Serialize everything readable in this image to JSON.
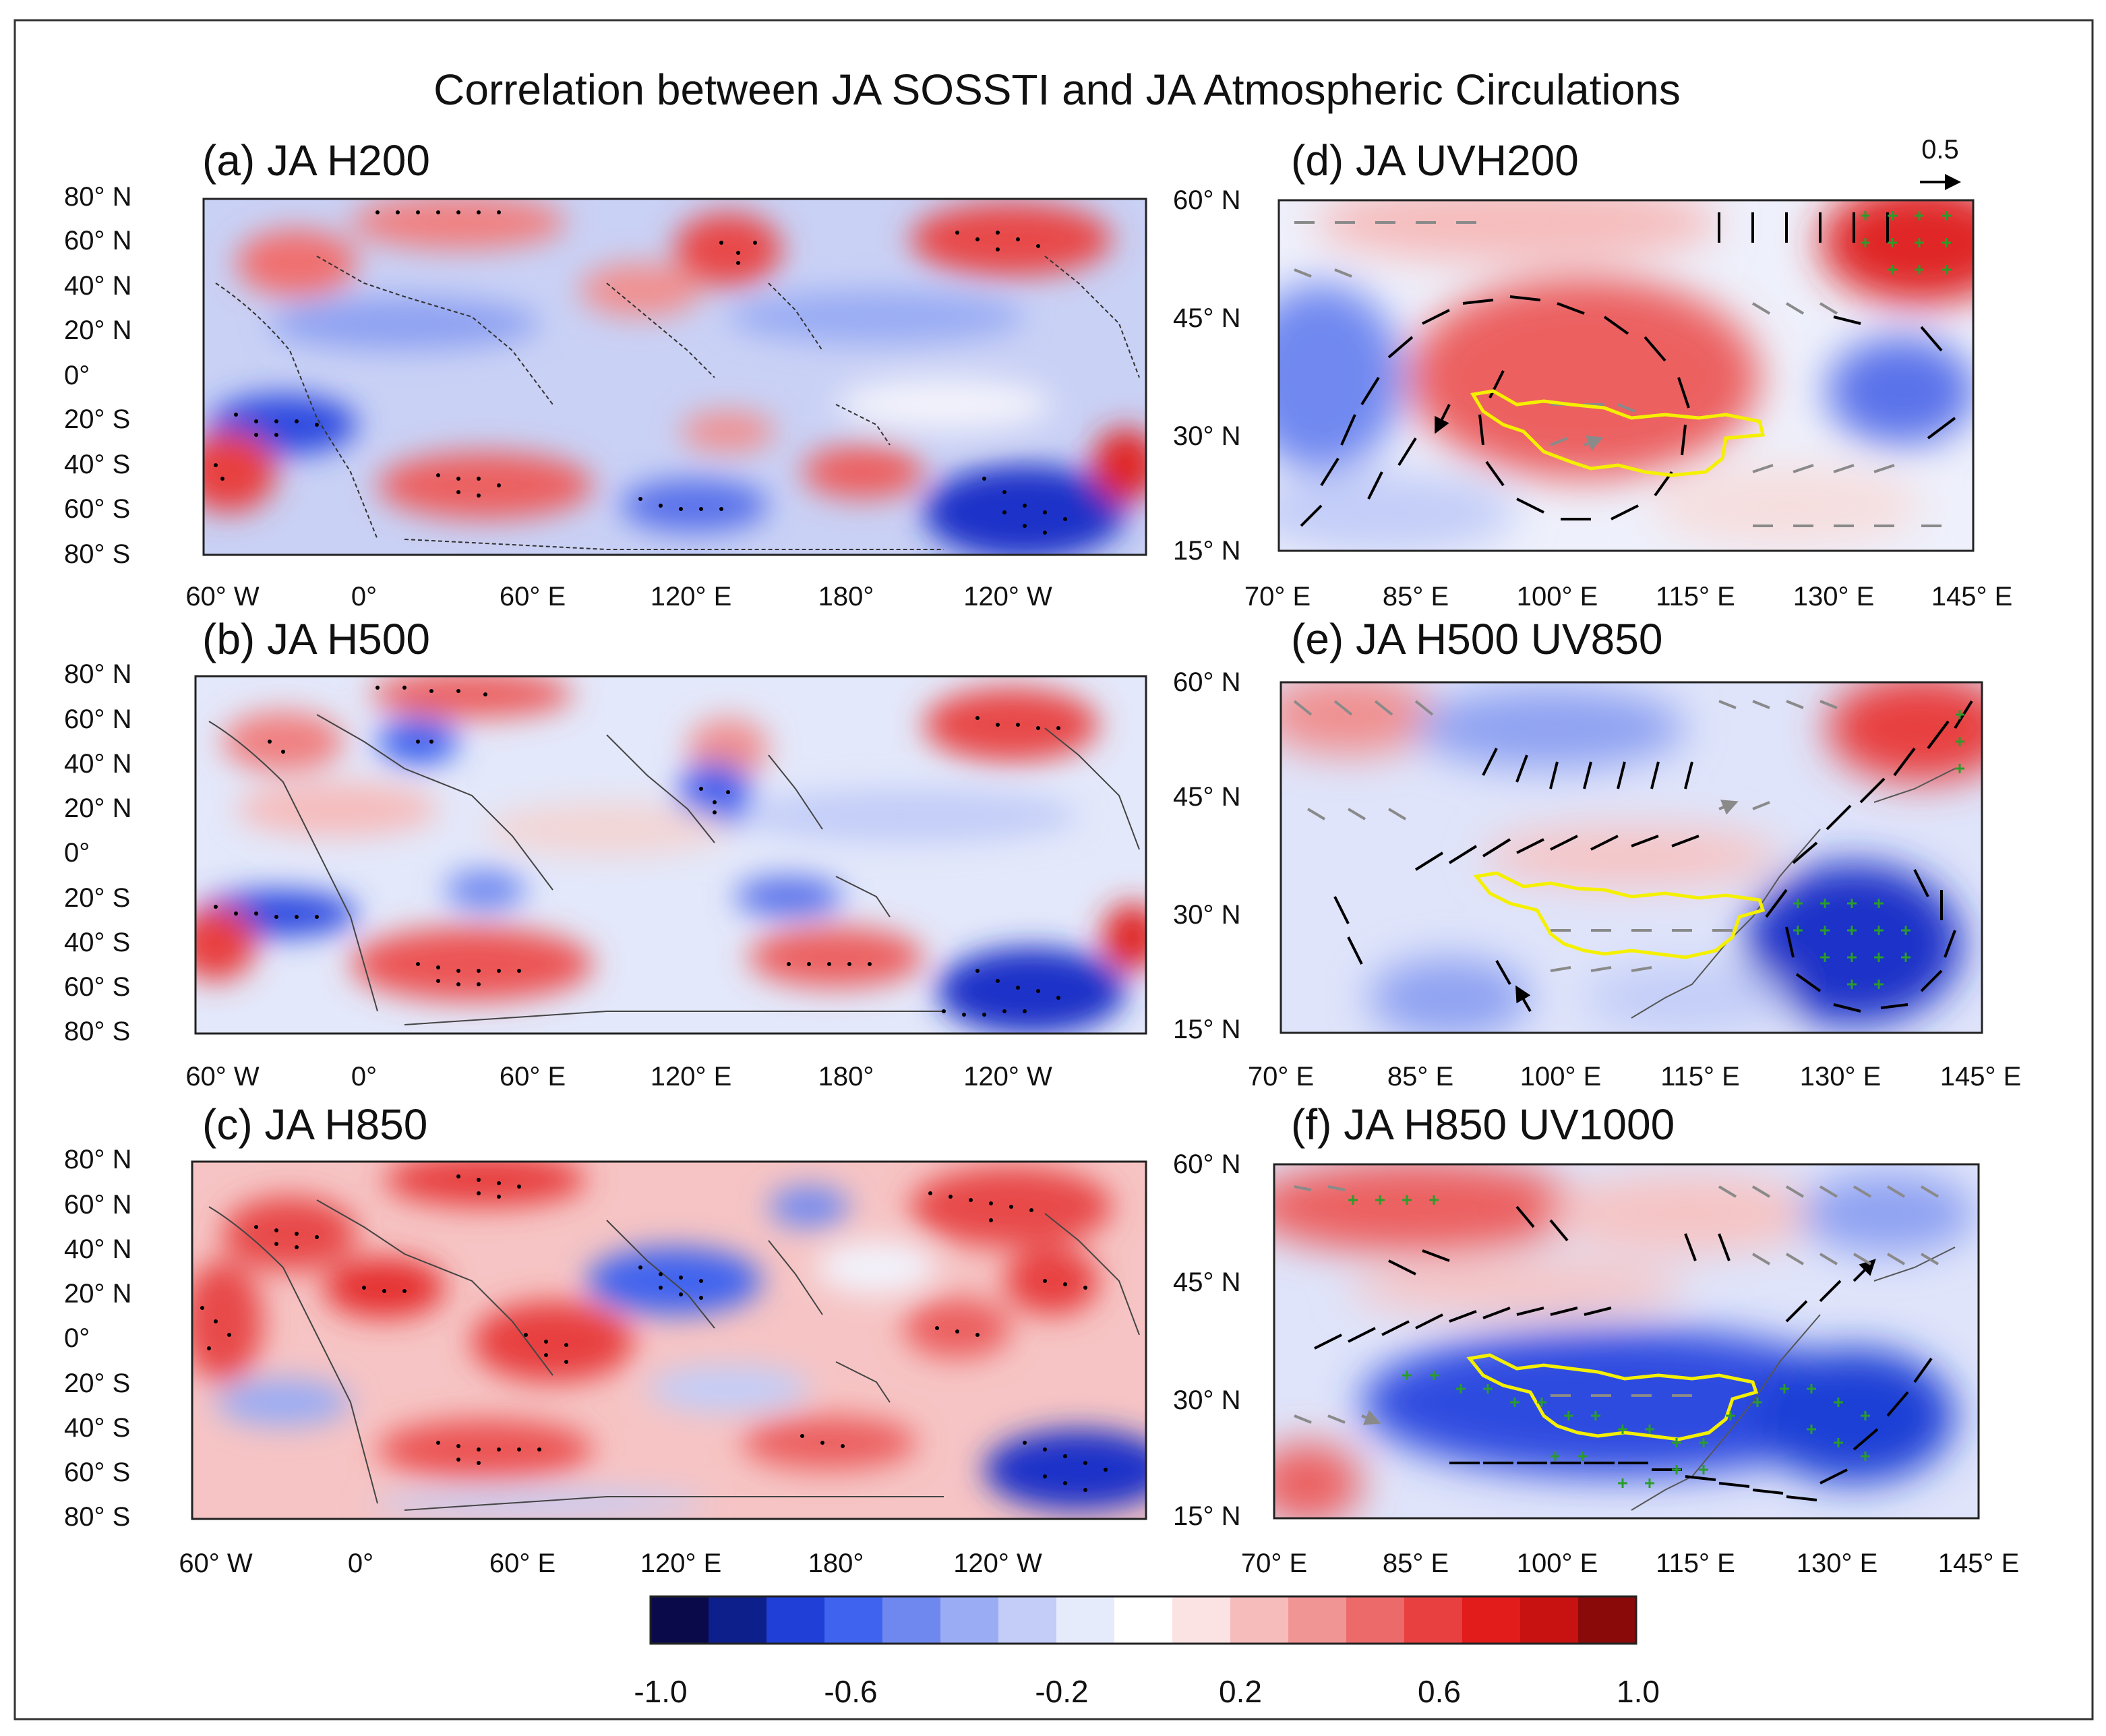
{
  "figure": {
    "title": "Correlation between JA SOSSTI and JA Atmospheric Circulations",
    "ref_vector_label": "0.5"
  },
  "panels": [
    {
      "id": "a",
      "title": "(a) JA H200",
      "kind": "global",
      "yticks": [
        "80° N",
        "60° N",
        "40° N",
        "20° N",
        "0°",
        "20° S",
        "40° S",
        "60° S",
        "80° S"
      ],
      "xticks": [
        "60° W",
        "0°",
        "60° E",
        "120° E",
        "180°",
        "120° W"
      ]
    },
    {
      "id": "b",
      "title": "(b) JA H500",
      "kind": "global",
      "yticks": [
        "80° N",
        "60° N",
        "40° N",
        "20° N",
        "0°",
        "20° S",
        "40° S",
        "60° S",
        "80° S"
      ],
      "xticks": [
        "60° W",
        "0°",
        "60° E",
        "120° E",
        "180°",
        "120° W"
      ]
    },
    {
      "id": "c",
      "title": "(c) JA H850",
      "kind": "global",
      "yticks": [
        "80° N",
        "60° N",
        "40° N",
        "20° N",
        "0°",
        "20° S",
        "40° S",
        "60° S",
        "80° S"
      ],
      "xticks": [
        "60° W",
        "0°",
        "60° E",
        "120° E",
        "180°",
        "120° W"
      ]
    },
    {
      "id": "d",
      "title": "(d) JA UVH200",
      "kind": "regional",
      "yticks": [
        "60° N",
        "45° N",
        "30° N",
        "15° N"
      ],
      "xticks": [
        "70° E",
        "85° E",
        "100° E",
        "115° E",
        "130° E",
        "145° E"
      ]
    },
    {
      "id": "e",
      "title": "(e) JA H500 UV850",
      "kind": "regional",
      "yticks": [
        "60° N",
        "45° N",
        "30° N",
        "15° N"
      ],
      "xticks": [
        "70° E",
        "85° E",
        "100° E",
        "115° E",
        "130° E",
        "145° E"
      ]
    },
    {
      "id": "f",
      "title": "(f) JA H850 UV1000",
      "kind": "regional",
      "yticks": [
        "60° N",
        "45° N",
        "30° N",
        "15° N"
      ],
      "xticks": [
        "70° E",
        "85° E",
        "100° E",
        "115° E",
        "130° E",
        "145° E"
      ]
    }
  ],
  "colorbar": {
    "labels": [
      "-1.0",
      "-0.6",
      "-0.2",
      "0.2",
      "0.6",
      "1.0"
    ],
    "range": [
      -1.0,
      1.0
    ],
    "colors": [
      "#0a0a4a",
      "#0d1f8a",
      "#1f3fd6",
      "#3f63ee",
      "#6f88f0",
      "#9aacf4",
      "#c3cdf8",
      "#e6ebfb",
      "#ffffff",
      "#fbe3e3",
      "#f6bcbc",
      "#f19494",
      "#ec6a6a",
      "#e84040",
      "#e21b1b",
      "#c81212",
      "#8a0a0a"
    ]
  },
  "colors": {
    "positive": "#e63232",
    "negative": "#2b45e0",
    "basin_outline": "#f5f000",
    "significance_regional": "#2a9d2a",
    "vector_significant": "#000000",
    "vector_other": "#8a8a8a"
  }
}
